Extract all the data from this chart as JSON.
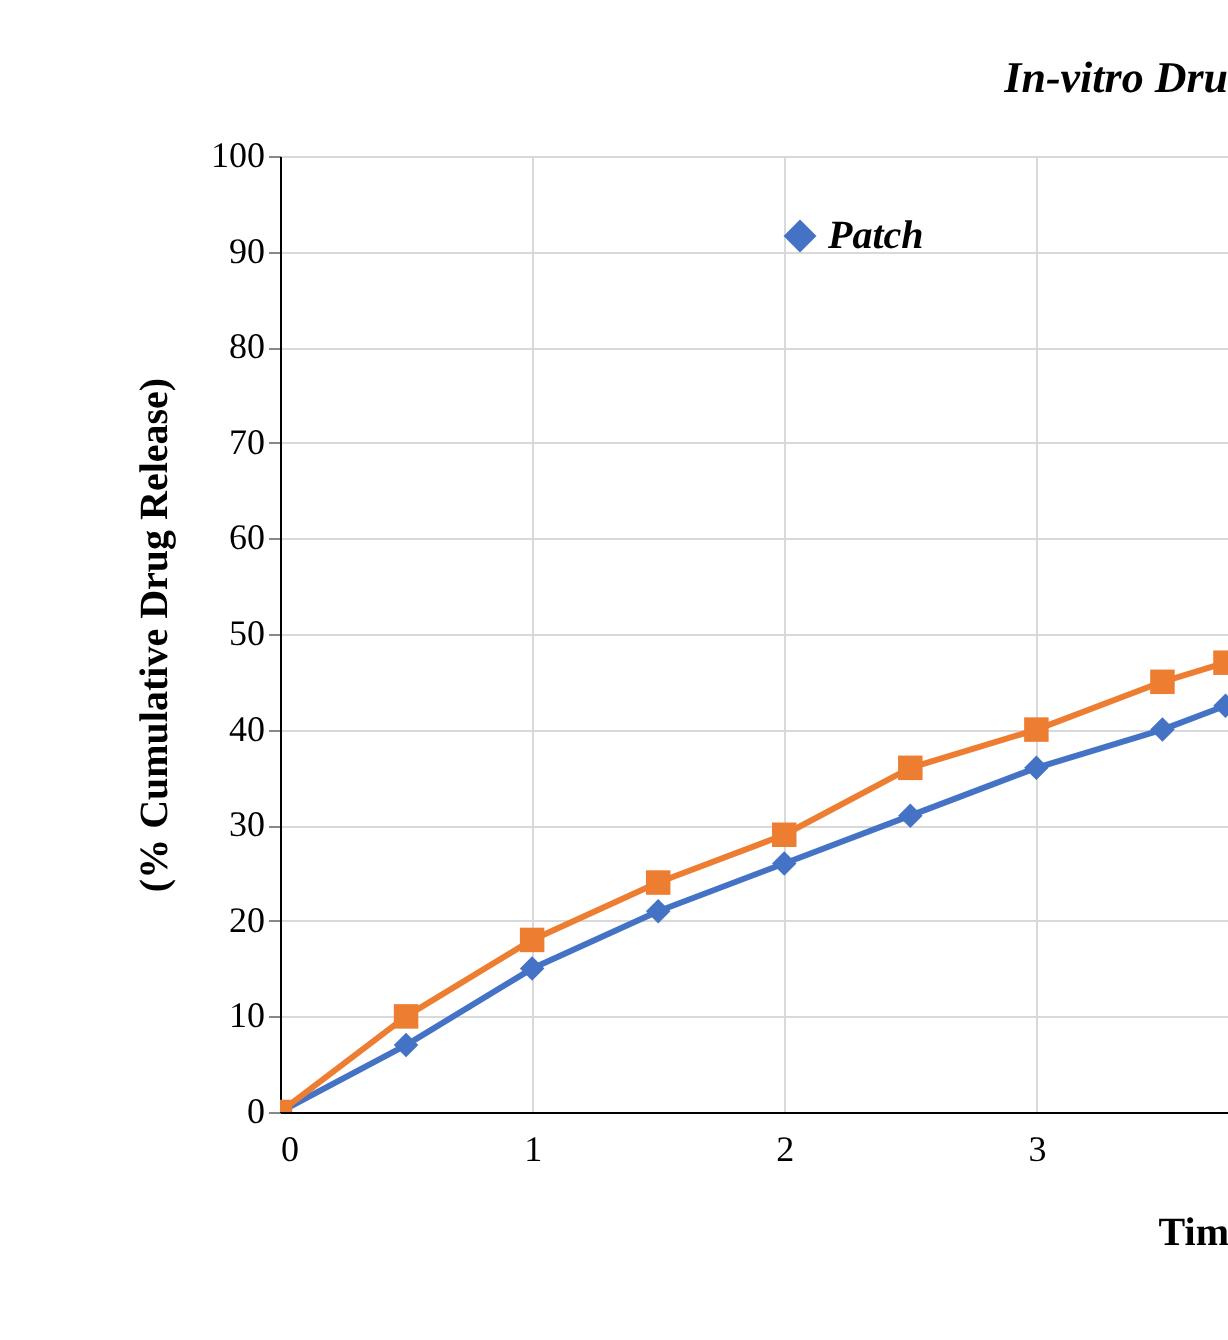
{
  "chart_data": {
    "type": "line",
    "title": "In-vitro Dru",
    "xlabel": "Tim",
    "ylabel": "(% Cumulative Drug Release)",
    "x": [
      0,
      0.5,
      1,
      1.5,
      2,
      2.5,
      3,
      3.5,
      3.75
    ],
    "xlim": [
      0,
      3.76
    ],
    "xticks": [
      0,
      1,
      2,
      3
    ],
    "ylim": [
      0,
      100
    ],
    "yticks": [
      0,
      10,
      20,
      30,
      40,
      50,
      60,
      70,
      80,
      90,
      100
    ],
    "grid": true,
    "legend": "top",
    "line_style": "solid",
    "series": [
      {
        "name": "Patch",
        "color": "#4472c4",
        "marker": "diamond",
        "values": [
          0,
          7,
          15,
          21,
          26,
          31,
          36,
          40,
          42.5
        ]
      },
      {
        "color": "#ed7d31",
        "marker": "square",
        "values": [
          0,
          10,
          18,
          24,
          29,
          36,
          40,
          45,
          47
        ]
      }
    ]
  }
}
